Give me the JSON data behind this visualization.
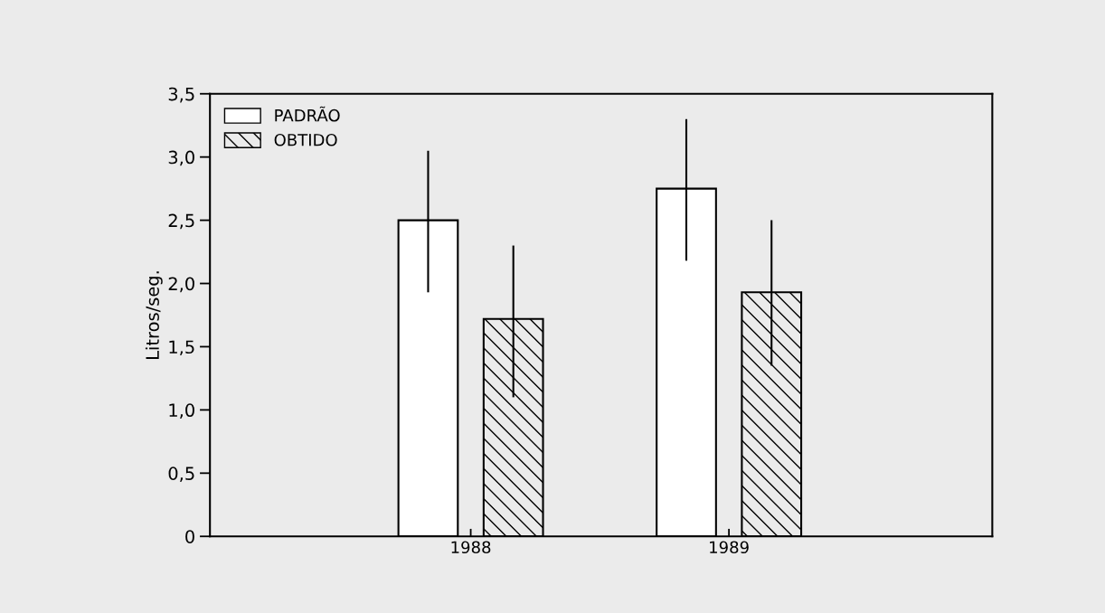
{
  "chart_data": {
    "type": "bar",
    "ylabel": "Litros/seg.",
    "categories": [
      "1988",
      "1989"
    ],
    "series": [
      {
        "name": "PADRÃO",
        "color": "#ffffff",
        "values": [
          2.5,
          2.75
        ],
        "errors": [
          [
            1.93,
            3.05
          ],
          [
            2.18,
            3.3
          ]
        ]
      },
      {
        "name": "OBTIDO",
        "color": "#000000",
        "values": [
          1.72,
          1.93
        ],
        "errors": [
          [
            1.1,
            2.3
          ],
          [
            1.35,
            2.5
          ]
        ]
      }
    ],
    "ylim": [
      0,
      3.5
    ],
    "yticks": [
      0,
      {
        "value": 0.5,
        "label": "0,5"
      },
      {
        "value": 1.0,
        "label": "1,0"
      },
      {
        "value": 1.5,
        "label": "1,5"
      },
      {
        "value": 2.0,
        "label": "2,0"
      },
      {
        "value": 2.5,
        "label": "2,5"
      },
      {
        "value": 3.0,
        "label": "3,0"
      },
      {
        "value": 3.5,
        "label": "3,5"
      }
    ],
    "legend": "top left",
    "grid": false
  }
}
